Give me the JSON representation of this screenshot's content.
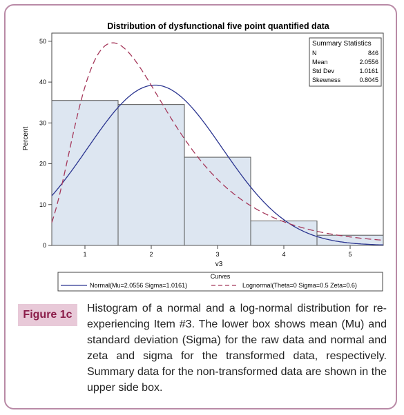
{
  "figure": {
    "label": "Figure 1c",
    "caption": "Histogram of a normal and a log-normal distribution for re-experiencing Item #3. The lower box shows mean (Mu) and standard deviation (Sigma) for the raw data and normal and zeta and sigma for the transformed data, respectively. Summary data for the non-transformed data are shown in the upper side box."
  },
  "colors": {
    "frame": "#b98aa6",
    "bar_fill": "#dde6f1",
    "bar_stroke": "#555555",
    "normal_curve": "#2b3590",
    "lognormal_curve": "#a5375a",
    "label_bg": "#e8c9d8",
    "label_text": "#8b1d4a"
  },
  "chart_data": {
    "type": "bar",
    "title": "Distribution of dysfunctional five point quantified data",
    "xlabel": "v3",
    "ylabel": "Percent",
    "xlim": [
      0.5,
      5.5
    ],
    "ylim": [
      0,
      52
    ],
    "x_ticks": [
      "1",
      "2",
      "3",
      "4",
      "5"
    ],
    "y_ticks": [
      "0",
      "10",
      "20",
      "30",
      "40",
      "50"
    ],
    "grid": false,
    "bins": [
      {
        "from": 0.5,
        "to": 1.5,
        "value": 35.5
      },
      {
        "from": 1.5,
        "to": 2.5,
        "value": 34.5
      },
      {
        "from": 2.5,
        "to": 3.5,
        "value": 21.6
      },
      {
        "from": 3.5,
        "to": 4.5,
        "value": 6.0
      },
      {
        "from": 4.5,
        "to": 5.5,
        "value": 2.5
      }
    ],
    "curves": [
      {
        "name": "Normal(Mu=2.0556 Sigma=1.0161)",
        "kind": "normal",
        "mu": 2.0556,
        "sigma": 1.0161,
        "style": "solid"
      },
      {
        "name": "Lognormal(Theta=0 Sigma=0.5 Zeta=0.6)",
        "kind": "lognormal",
        "theta": 0,
        "sigma": 0.5,
        "zeta": 0.6,
        "style": "dashed"
      }
    ],
    "legend_title": "Curves",
    "legend_position": "bottom",
    "summary": {
      "title": "Summary Statistics",
      "rows": [
        {
          "label": "N",
          "value": "846"
        },
        {
          "label": "Mean",
          "value": "2.0556"
        },
        {
          "label": "Std Dev",
          "value": "1.0161"
        },
        {
          "label": "Skewness",
          "value": "0.8045"
        }
      ],
      "position": "top-right"
    }
  }
}
